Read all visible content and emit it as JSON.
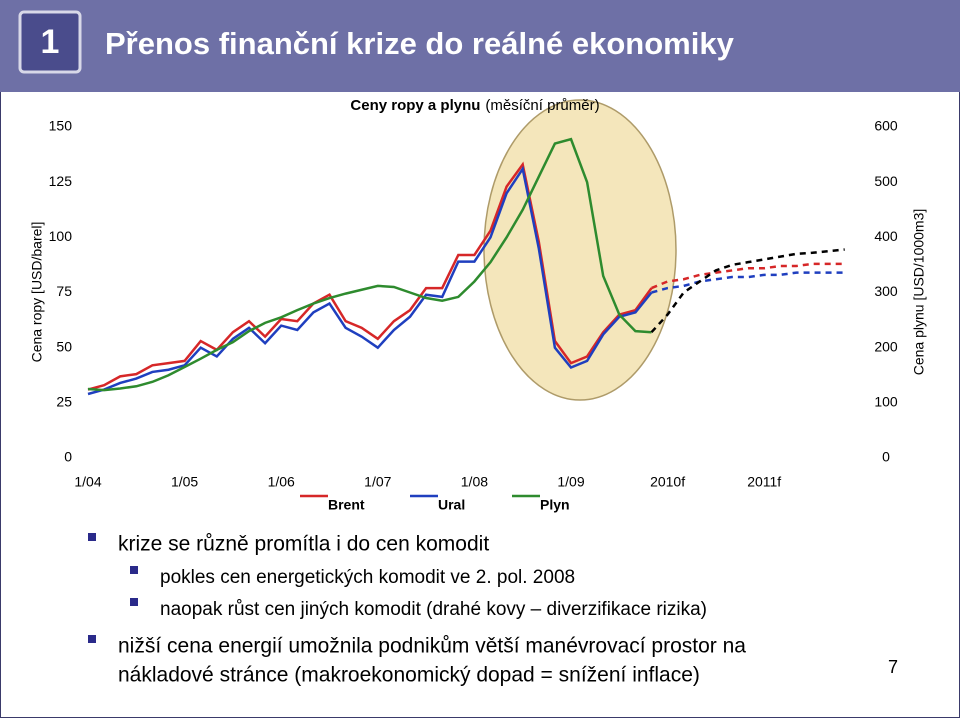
{
  "slide": {
    "number": "1",
    "title": "Přenos finanční krize do reálné ekonomiky",
    "page": "7",
    "bullets": [
      {
        "level": 1,
        "text": "krize se různě promítla i do cen komodit"
      },
      {
        "level": 2,
        "text": "pokles cen energetických komodit ve 2. pol. 2008"
      },
      {
        "level": 2,
        "text": "naopak růst cen jiných komodit (drahé kovy – diverzifikace rizika)"
      },
      {
        "level": 1,
        "text": "nižší cena energií umožnila podnikům větší manévrovací prostor na"
      },
      {
        "level": 0,
        "text": "nákladové stránce (makroekonomický dopad = snížení inflace)"
      }
    ]
  },
  "chart_data": {
    "type": "line",
    "title": "Ceny ropy a plynu",
    "subtitle": "(měsíční průměr)",
    "ylabel": "Cena ropy [USD/barel]",
    "y2label": "Cena plynu [USD/1000m3]",
    "categories": [
      "1/04",
      null,
      null,
      null,
      null,
      null,
      "1/05",
      null,
      null,
      null,
      null,
      null,
      "1/06",
      null,
      null,
      null,
      null,
      null,
      "1/07",
      null,
      null,
      null,
      null,
      null,
      "1/08",
      null,
      null,
      null,
      null,
      null,
      "1/09",
      null,
      null,
      null,
      null,
      null,
      "2010f",
      null,
      null,
      null,
      null,
      null,
      "2011f",
      null,
      null,
      null,
      null,
      null
    ],
    "ylim": [
      0,
      150
    ],
    "yticks": [
      0,
      25,
      50,
      75,
      100,
      125,
      150
    ],
    "y2lim": [
      0,
      600
    ],
    "y2ticks": [
      0,
      100,
      200,
      300,
      400,
      500,
      600
    ],
    "dashed_from": 35,
    "legend": "bottom",
    "series": [
      {
        "name": "Brent",
        "color": "#d62728",
        "forecast_color": "#d62728",
        "values": [
          31,
          33,
          37,
          38,
          42,
          43,
          44,
          53,
          49,
          57,
          62,
          55,
          63,
          62,
          70,
          74,
          62,
          59,
          54,
          62,
          67,
          77,
          77,
          92,
          92,
          103,
          123,
          133,
          98,
          53,
          43,
          46,
          57,
          65,
          67,
          77,
          80,
          81,
          83,
          84,
          85,
          86,
          86,
          87,
          87,
          88,
          88,
          88
        ]
      },
      {
        "name": "Ural",
        "color": "#1f3fbf",
        "forecast_color": "#1f3fbf",
        "values": [
          29,
          31,
          34,
          36,
          39,
          40,
          42,
          50,
          46,
          54,
          59,
          52,
          60,
          58,
          66,
          70,
          59,
          55,
          50,
          58,
          64,
          74,
          73,
          89,
          89,
          100,
          120,
          131,
          95,
          50,
          41,
          44,
          56,
          64,
          66,
          75,
          77,
          78,
          80,
          81,
          82,
          82,
          83,
          83,
          84,
          84,
          84,
          84
        ]
      },
      {
        "name": "Plyn",
        "color": "#2e8b2e",
        "forecast_color": "#000000",
        "axis": "y2",
        "values": [
          125,
          123,
          126,
          130,
          138,
          150,
          165,
          180,
          196,
          210,
          230,
          245,
          255,
          268,
          280,
          290,
          298,
          305,
          312,
          310,
          300,
          290,
          285,
          292,
          320,
          355,
          400,
          450,
          510,
          570,
          578,
          500,
          330,
          260,
          230,
          228,
          260,
          300,
          320,
          340,
          350,
          355,
          360,
          365,
          370,
          372,
          375,
          378
        ]
      }
    ]
  }
}
